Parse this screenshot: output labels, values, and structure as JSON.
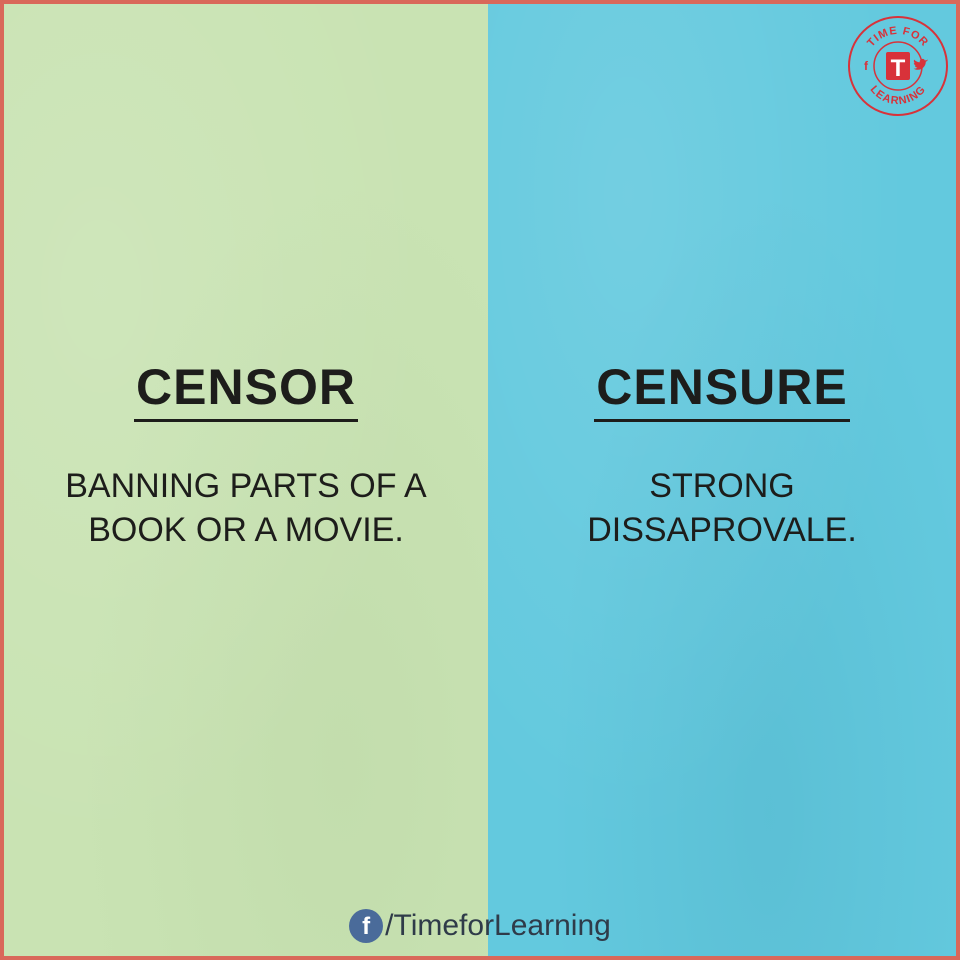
{
  "left": {
    "title": "CENSOR",
    "definition_line1": "BANNING PARTS OF A",
    "definition_line2": "BOOK OR A MOVIE."
  },
  "right": {
    "title": "CENSURE",
    "definition_line1": "STRONG",
    "definition_line2": "DISSAPROVALE."
  },
  "logo": {
    "top_text": "TIME FOR",
    "bottom_text": "LEARNING",
    "letter": "T",
    "icons": [
      "facebook-icon",
      "twitter-icon"
    ]
  },
  "footer": {
    "handle": "/TimeforLearning",
    "icon": "facebook-icon"
  },
  "colors": {
    "left_bg": "#c9e3b3",
    "right_bg": "#63c9de",
    "border": "#d9685a",
    "text": "#1d1d1b"
  }
}
